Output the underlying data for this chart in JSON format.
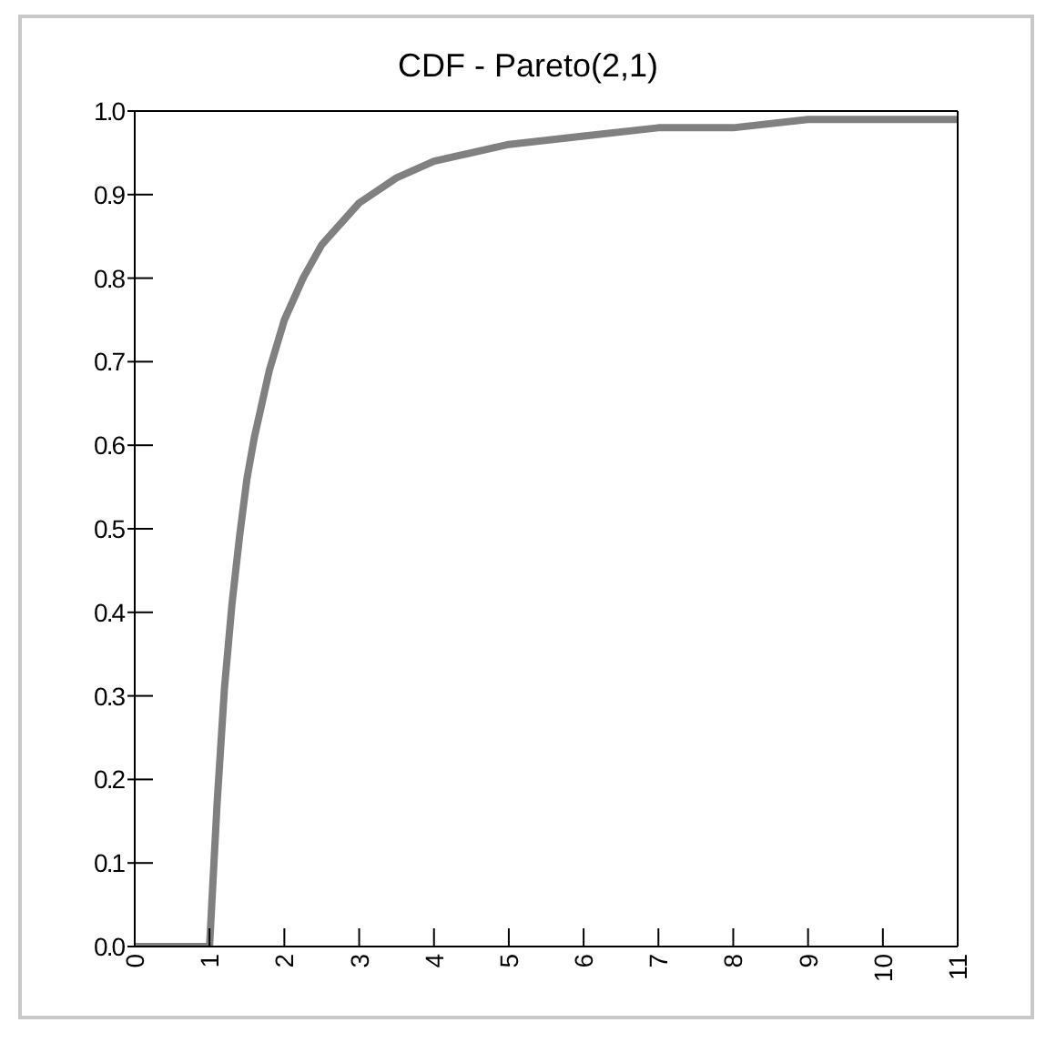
{
  "chart_data": {
    "type": "line",
    "title": "CDF - Pareto(2,1)",
    "x": [
      0,
      1,
      1.1,
      1.2,
      1.3,
      1.4,
      1.5,
      1.6,
      1.8,
      2,
      2.25,
      2.5,
      3,
      3.5,
      4,
      5,
      6,
      7,
      8,
      9,
      10,
      11
    ],
    "series": [
      {
        "color": "#808080",
        "values": [
          0,
          0,
          0.17,
          0.31,
          0.41,
          0.49,
          0.56,
          0.61,
          0.69,
          0.75,
          0.8,
          0.84,
          0.89,
          0.92,
          0.94,
          0.96,
          0.97,
          0.98,
          0.98,
          0.99,
          0.99,
          0.99
        ]
      }
    ],
    "xlim": [
      0,
      11
    ],
    "xticks": [
      0,
      1,
      2,
      3,
      4,
      5,
      6,
      7,
      8,
      9,
      10,
      11
    ],
    "ylim": [
      0,
      1
    ],
    "yticks": [
      {
        "value": 0,
        "label": "0.0"
      },
      {
        "value": 0.1,
        "label": "0.1"
      },
      {
        "value": 0.2,
        "label": "0.2"
      },
      {
        "value": 0.3,
        "label": "0.3"
      },
      {
        "value": 0.4,
        "label": "0.4"
      },
      {
        "value": 0.5,
        "label": "0.5"
      },
      {
        "value": 0.6,
        "label": "0.6"
      },
      {
        "value": 0.7,
        "label": "0.7"
      },
      {
        "value": 0.8,
        "label": "0.8"
      },
      {
        "value": 0.9,
        "label": "0.9"
      },
      {
        "value": 1,
        "label": "1.0"
      }
    ],
    "grid": false,
    "legend": false,
    "marker": "none",
    "line_style": "solid"
  }
}
